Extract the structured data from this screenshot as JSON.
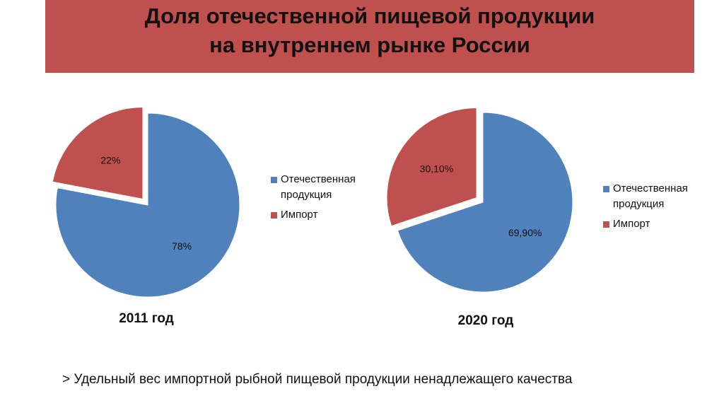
{
  "slide": {
    "title_line1": "Доля отечественной пищевой продукции",
    "title_line2": "на внутреннем рынке России",
    "note": "> Удельный вес импортной рыбной пищевой продукции ненадлежащего качества"
  },
  "colors": {
    "title_band": "#c0504d",
    "domestic": "#4f81bd",
    "import": "#c0504d"
  },
  "chart_data": [
    {
      "type": "pie",
      "title": "2011 год",
      "categories": [
        "Отечественная продукция",
        "Импорт"
      ],
      "values": [
        78,
        22
      ],
      "data_labels": [
        "78%",
        "22%"
      ],
      "exploded": "Импорт",
      "legend_position": "right"
    },
    {
      "type": "pie",
      "title": "2020 год",
      "categories": [
        "Отечественная продукция",
        "Импорт"
      ],
      "values": [
        69.9,
        30.1
      ],
      "data_labels": [
        "69,90%",
        "30,10%"
      ],
      "exploded": "Импорт",
      "legend_position": "right"
    }
  ],
  "legend": {
    "domestic_line1": "Отечественная",
    "domestic_line2": "продукция",
    "import": "Импорт"
  }
}
